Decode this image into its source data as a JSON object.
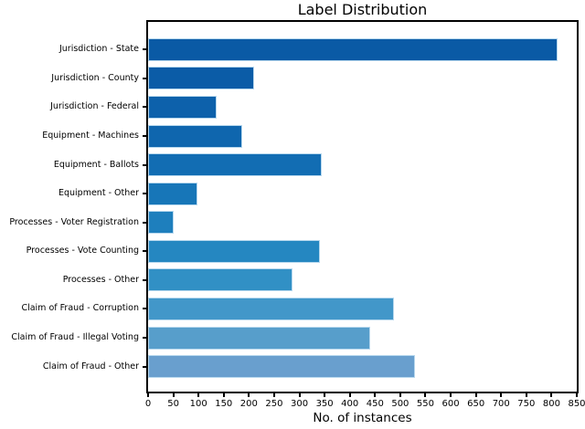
{
  "chart_data": {
    "type": "bar",
    "orientation": "horizontal",
    "title": "Label Distribution",
    "xlabel": "No. of instances",
    "ylabel": "",
    "categories": [
      "Jurisdiction - State",
      "Jurisdiction - County",
      "Jurisdiction - Federal",
      "Equipment - Machines",
      "Equipment - Ballots",
      "Equipment - Other",
      "Processes - Voter Registration",
      "Processes - Vote Counting",
      "Processes - Other",
      "Claim of Fraud - Corruption",
      "Claim of Fraud - Illegal Voting",
      "Claim of Fraud - Other"
    ],
    "values": [
      812,
      211,
      136,
      186,
      345,
      98,
      51,
      340,
      287,
      488,
      441,
      530
    ],
    "xlim": [
      0,
      850
    ],
    "xtick_labels": [
      "0",
      "50",
      "100",
      "150",
      "200",
      "250",
      "300",
      "350",
      "400",
      "450",
      "500",
      "550",
      "600",
      "650",
      "700",
      "750",
      "800",
      "850"
    ],
    "grid": false,
    "legend": "none",
    "background_color": "#ffffff",
    "spine_color": "#000000",
    "bar_edge_color": "#b7d8ee",
    "bar_colors": [
      "#0a5aa5",
      "#0b5ca7",
      "#0d61ab",
      "#0f66ae",
      "#126db3",
      "#1776b8",
      "#1e7fbd",
      "#2587c1",
      "#3190c5",
      "#4297c9",
      "#579ecb",
      "#699fce"
    ]
  }
}
